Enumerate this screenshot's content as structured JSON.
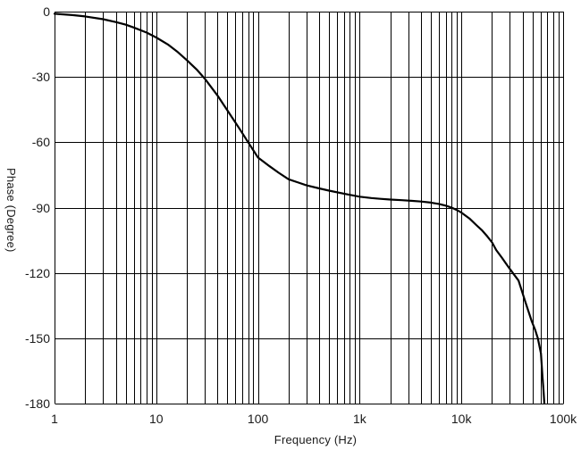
{
  "figure": {
    "background": "#ffffff",
    "axis_color": "#000000",
    "text_color": "#1a1a1a"
  },
  "chart_data": {
    "type": "line",
    "title": "",
    "xlabel": "Frequency (Hz)",
    "ylabel": "Phase (Degree)",
    "x_scale": "log",
    "x_range": [
      1,
      100000
    ],
    "y_range": [
      -180,
      0
    ],
    "y_tick_step": 30,
    "grid": true,
    "minor_grid": "log-decade-lines",
    "legend": false,
    "x_ticks": [
      {
        "value": 1,
        "label": "1"
      },
      {
        "value": 10,
        "label": "10"
      },
      {
        "value": 100,
        "label": "100"
      },
      {
        "value": 1000,
        "label": "1k"
      },
      {
        "value": 10000,
        "label": "10k"
      },
      {
        "value": 100000,
        "label": "100k"
      }
    ],
    "y_ticks": [
      {
        "value": 0,
        "label": "0"
      },
      {
        "value": -30,
        "label": "-30"
      },
      {
        "value": -60,
        "label": "-60"
      },
      {
        "value": -90,
        "label": "-90"
      },
      {
        "value": -120,
        "label": "-120"
      },
      {
        "value": -150,
        "label": "-150"
      },
      {
        "value": -180,
        "label": "-180"
      }
    ],
    "series": [
      {
        "name": "phase",
        "color": "#000000",
        "stroke_width": 2.2,
        "points": [
          [
            1,
            -1.0
          ],
          [
            1.5,
            -1.6
          ],
          [
            2,
            -2.2
          ],
          [
            3,
            -3.5
          ],
          [
            4,
            -4.8
          ],
          [
            5,
            -6.0
          ],
          [
            6,
            -7.3
          ],
          [
            8,
            -9.6
          ],
          [
            10,
            -11.9
          ],
          [
            13,
            -15.1
          ],
          [
            16,
            -18.3
          ],
          [
            20,
            -22.3
          ],
          [
            25,
            -26.6
          ],
          [
            30,
            -30.8
          ],
          [
            40,
            -38.5
          ],
          [
            50,
            -45.3
          ],
          [
            65,
            -53.4
          ],
          [
            80,
            -60.0
          ],
          [
            100,
            -67.0
          ],
          [
            130,
            -71.0
          ],
          [
            160,
            -74.0
          ],
          [
            200,
            -77.0
          ],
          [
            250,
            -78.5
          ],
          [
            300,
            -79.8
          ],
          [
            400,
            -81.2
          ],
          [
            500,
            -82.2
          ],
          [
            700,
            -83.6
          ],
          [
            1000,
            -85.0
          ],
          [
            1300,
            -85.6
          ],
          [
            1600,
            -86.0
          ],
          [
            2000,
            -86.3
          ],
          [
            2600,
            -86.6
          ],
          [
            3200,
            -86.9
          ],
          [
            4000,
            -87.2
          ],
          [
            5000,
            -87.7
          ],
          [
            6000,
            -88.3
          ],
          [
            7000,
            -89.1
          ],
          [
            8000,
            -90.0
          ],
          [
            9000,
            -91.1
          ],
          [
            10000,
            -92.3
          ],
          [
            12000,
            -95.0
          ],
          [
            14000,
            -98.0
          ],
          [
            16000,
            -100.5
          ],
          [
            18000,
            -103.3
          ],
          [
            20000,
            -106.0
          ],
          [
            22000,
            -109.5
          ],
          [
            25000,
            -113.0
          ],
          [
            28000,
            -116.3
          ],
          [
            32000,
            -120.0
          ],
          [
            36400,
            -123.5
          ],
          [
            43000,
            -134.0
          ],
          [
            49300,
            -142.3
          ],
          [
            53000,
            -146.0
          ],
          [
            56400,
            -150.0
          ],
          [
            60500,
            -157.0
          ],
          [
            62500,
            -167.0
          ],
          [
            64000,
            -173.0
          ],
          [
            65400,
            -180.0
          ]
        ]
      }
    ]
  }
}
